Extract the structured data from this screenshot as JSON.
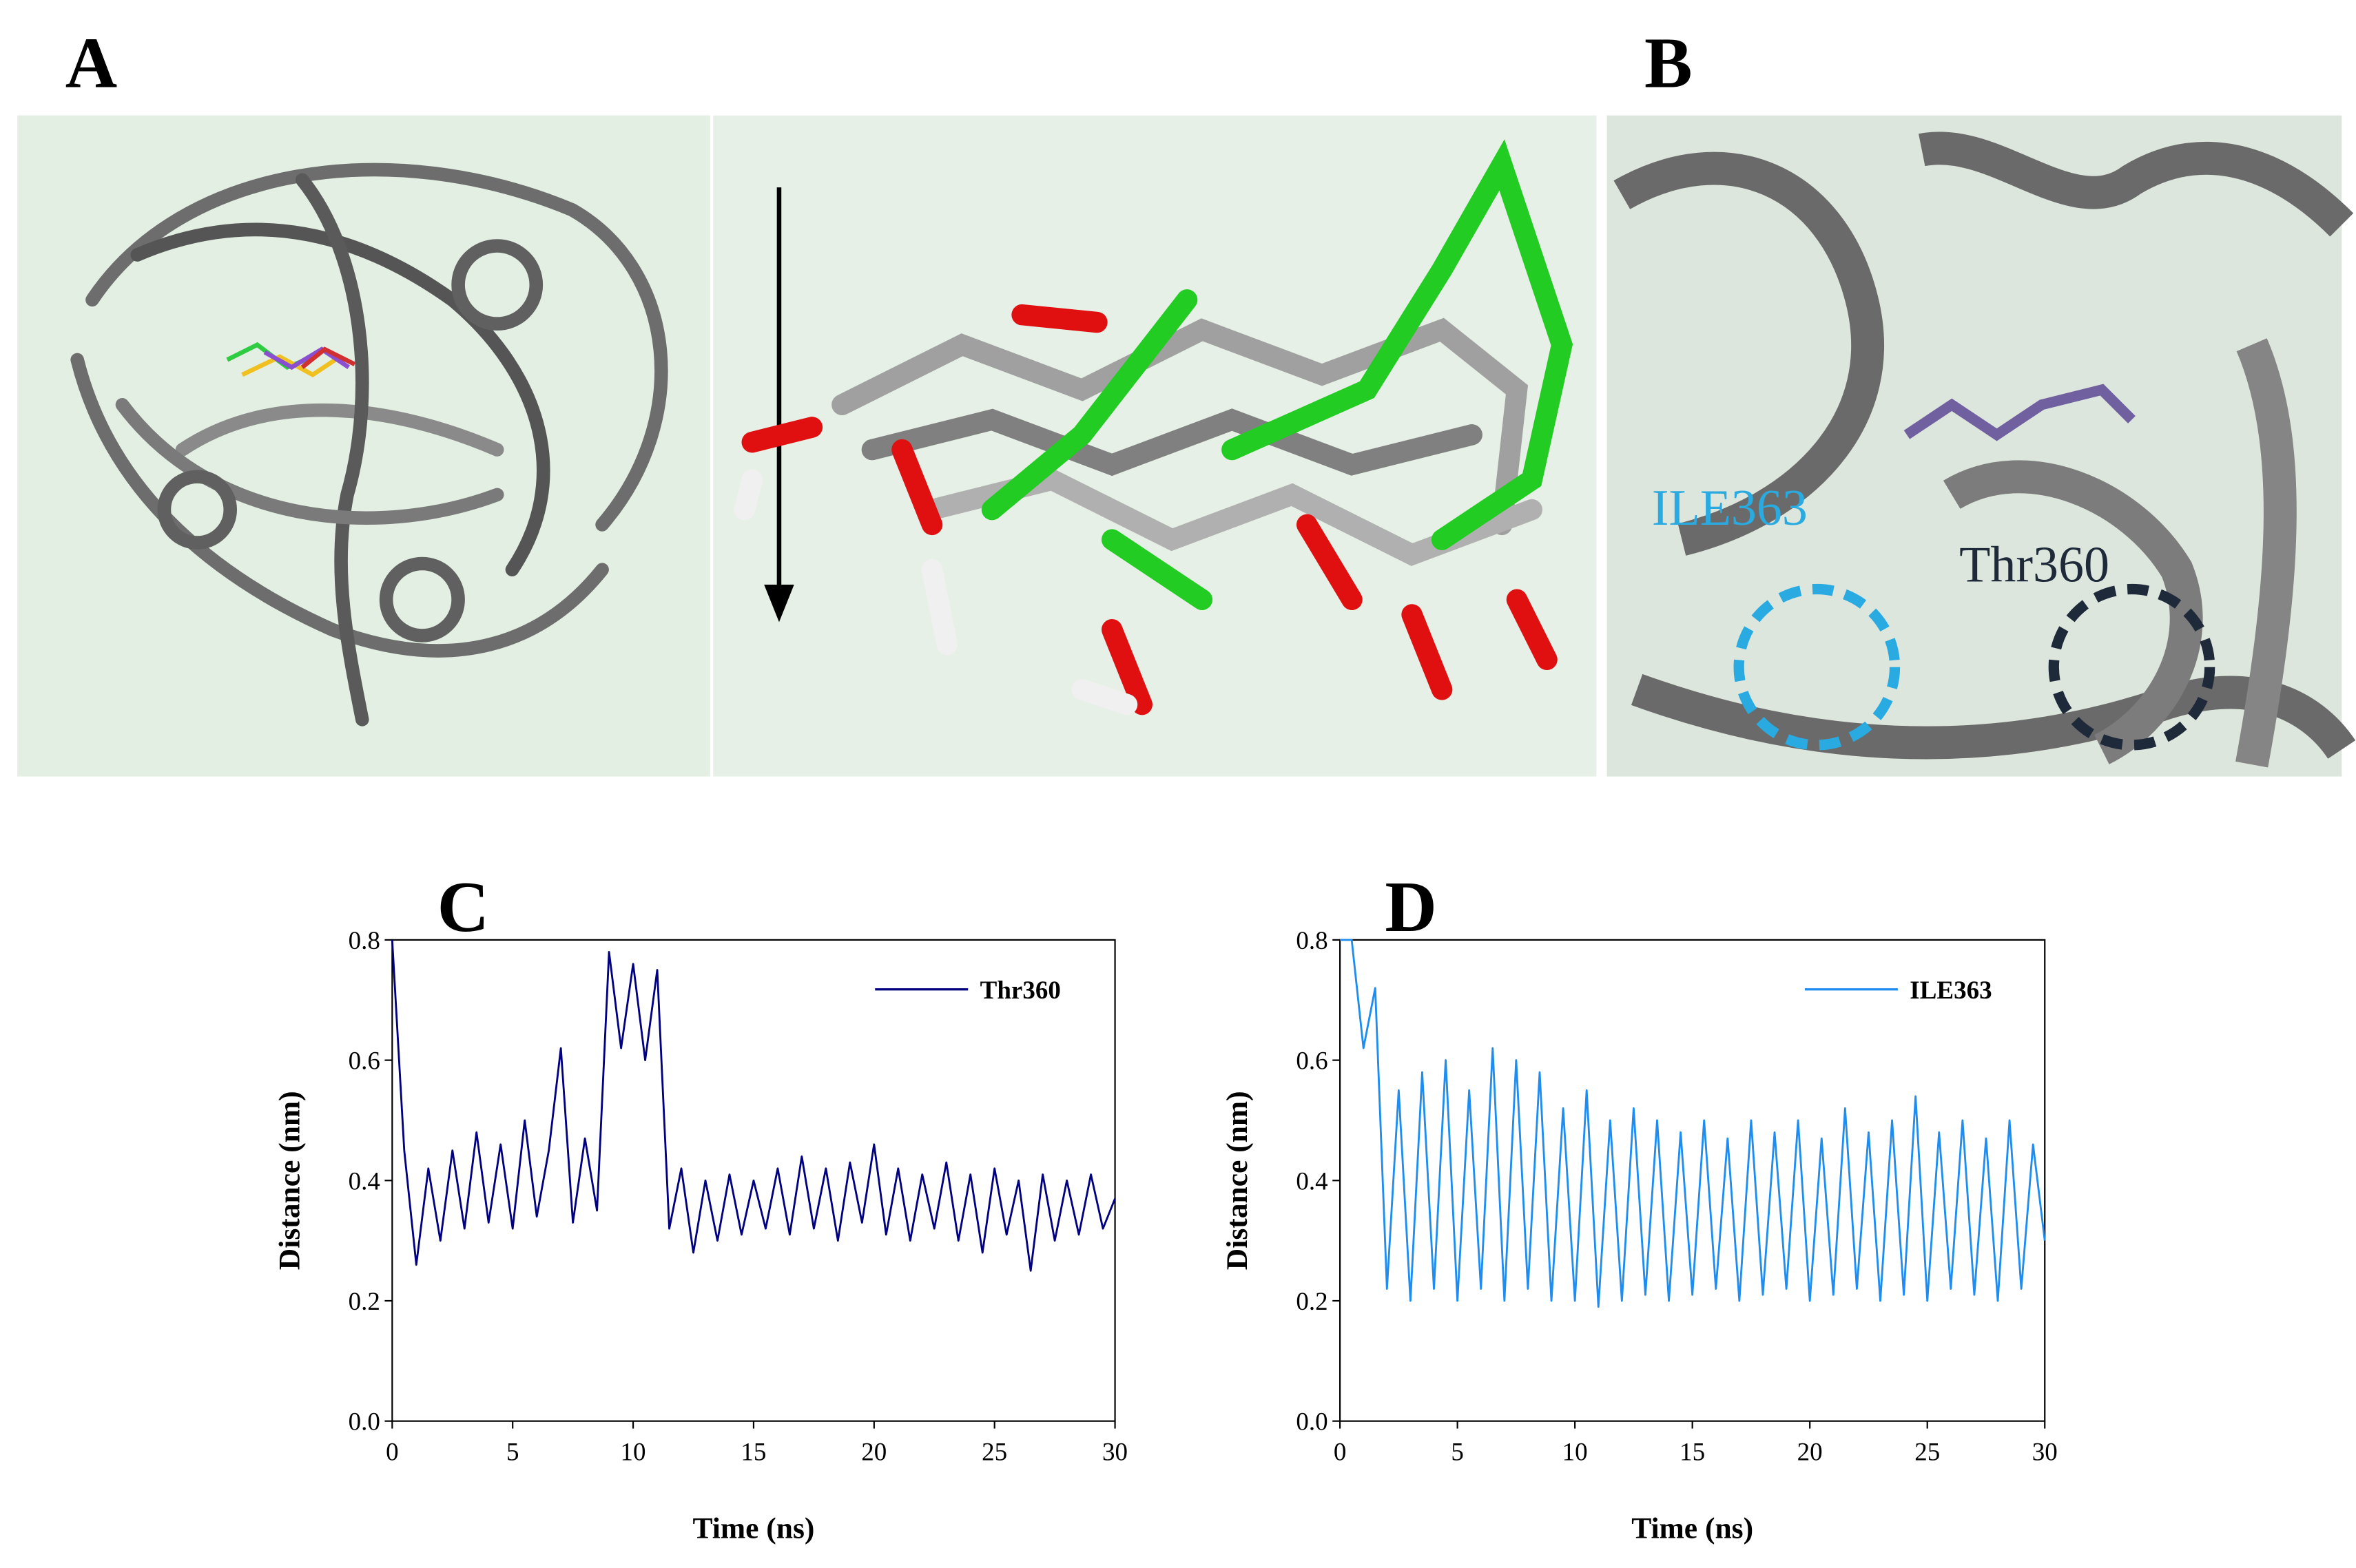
{
  "panel_labels": [
    "A",
    "B"
  ],
  "annotations": [
    "ILE363",
    "Thr360"
  ],
  "chart_data": [
    {
      "type": "line",
      "title": "C",
      "xlabel": "Time (ns)",
      "ylabel": "Distance (nm)",
      "xlim": [
        0,
        30
      ],
      "ylim": [
        0,
        0.8
      ],
      "xticks": [
        0,
        5,
        10,
        15,
        20,
        25,
        30
      ],
      "yticks": [
        {
          "value": 0,
          "label": "0.0"
        },
        0.2,
        0.4,
        0.6,
        0.8
      ],
      "legend": "upper right",
      "x": [
        0,
        0.5,
        1,
        1.5,
        2,
        2.5,
        3,
        3.5,
        4,
        4.5,
        5,
        5.5,
        6,
        6.5,
        7,
        7.5,
        8,
        8.5,
        9,
        9.5,
        10,
        10.5,
        11,
        11.5,
        12,
        12.5,
        13,
        13.5,
        14,
        14.5,
        15,
        15.5,
        16,
        16.5,
        17,
        17.5,
        18,
        18.5,
        19,
        19.5,
        20,
        20.5,
        21,
        21.5,
        22,
        22.5,
        23,
        23.5,
        24,
        24.5,
        25,
        25.5,
        26,
        26.5,
        27,
        27.5,
        28,
        28.5,
        29,
        29.5,
        30
      ],
      "series": [
        {
          "name": "Thr360",
          "color": "#000080",
          "values": [
            0.8,
            0.45,
            0.26,
            0.42,
            0.3,
            0.45,
            0.32,
            0.48,
            0.33,
            0.46,
            0.32,
            0.5,
            0.34,
            0.45,
            0.62,
            0.33,
            0.47,
            0.35,
            0.78,
            0.62,
            0.76,
            0.6,
            0.75,
            0.32,
            0.42,
            0.28,
            0.4,
            0.3,
            0.41,
            0.31,
            0.4,
            0.32,
            0.42,
            0.31,
            0.44,
            0.32,
            0.42,
            0.3,
            0.43,
            0.33,
            0.46,
            0.31,
            0.42,
            0.3,
            0.41,
            0.32,
            0.43,
            0.3,
            0.41,
            0.28,
            0.42,
            0.31,
            0.4,
            0.25,
            0.41,
            0.3,
            0.4,
            0.31,
            0.41,
            0.32,
            0.37
          ]
        }
      ]
    },
    {
      "type": "line",
      "title": "D",
      "xlabel": "Time (ns)",
      "ylabel": "Distance (nm)",
      "xlim": [
        0,
        30
      ],
      "ylim": [
        0,
        0.8
      ],
      "xticks": [
        0,
        5,
        10,
        15,
        20,
        25,
        30
      ],
      "yticks": [
        {
          "value": 0,
          "label": "0.0"
        },
        0.2,
        0.4,
        0.6,
        0.8
      ],
      "legend": "upper right",
      "x": [
        0,
        0.5,
        1,
        1.5,
        2,
        2.5,
        3,
        3.5,
        4,
        4.5,
        5,
        5.5,
        6,
        6.5,
        7,
        7.5,
        8,
        8.5,
        9,
        9.5,
        10,
        10.5,
        11,
        11.5,
        12,
        12.5,
        13,
        13.5,
        14,
        14.5,
        15,
        15.5,
        16,
        16.5,
        17,
        17.5,
        18,
        18.5,
        19,
        19.5,
        20,
        20.5,
        21,
        21.5,
        22,
        22.5,
        23,
        23.5,
        24,
        24.5,
        25,
        25.5,
        26,
        26.5,
        27,
        27.5,
        28,
        28.5,
        29,
        29.5,
        30
      ],
      "series": [
        {
          "name": "ILE363",
          "color": "#1e8cf0",
          "values": [
            0.8,
            0.8,
            0.62,
            0.72,
            0.22,
            0.55,
            0.2,
            0.58,
            0.22,
            0.6,
            0.2,
            0.55,
            0.22,
            0.62,
            0.2,
            0.6,
            0.22,
            0.58,
            0.2,
            0.52,
            0.2,
            0.55,
            0.19,
            0.5,
            0.2,
            0.52,
            0.21,
            0.5,
            0.2,
            0.48,
            0.21,
            0.5,
            0.22,
            0.47,
            0.2,
            0.5,
            0.21,
            0.48,
            0.22,
            0.5,
            0.2,
            0.47,
            0.21,
            0.52,
            0.22,
            0.48,
            0.2,
            0.5,
            0.21,
            0.54,
            0.2,
            0.48,
            0.22,
            0.5,
            0.21,
            0.47,
            0.2,
            0.5,
            0.22,
            0.46,
            0.3
          ]
        }
      ]
    }
  ]
}
